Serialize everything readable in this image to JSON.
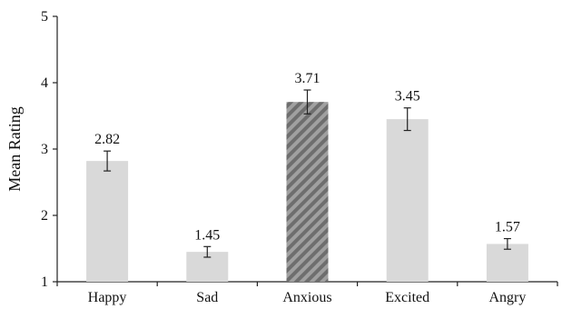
{
  "chart_data": {
    "type": "bar",
    "title": "",
    "xlabel": "",
    "ylabel": "Mean Rating",
    "ylim": [
      1,
      5
    ],
    "yticks": [
      1,
      2,
      3,
      4,
      5
    ],
    "categories": [
      "Happy",
      "Sad",
      "Anxious",
      "Excited",
      "Angry"
    ],
    "values": [
      2.82,
      1.45,
      3.71,
      3.45,
      1.57
    ],
    "value_labels": [
      "2.82",
      "1.45",
      "3.71",
      "3.45",
      "1.57"
    ],
    "error": [
      0.15,
      0.08,
      0.18,
      0.17,
      0.08
    ],
    "highlighted_category": "Anxious",
    "colors": {
      "bar": "#d9d9d9",
      "highlight_bar": "#a0a0a0",
      "highlight_stripe": "#6e6e6e",
      "axis": "#222222",
      "text": "#111111"
    },
    "grid": false,
    "legend": "none"
  }
}
